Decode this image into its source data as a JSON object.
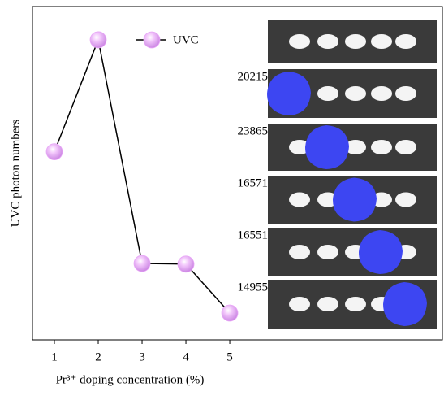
{
  "chart_data": {
    "type": "line",
    "x_label": "Pr³⁺ doping concentration (%)",
    "y_label": "UVC photon numbers",
    "x": [
      1,
      2,
      3,
      4,
      5
    ],
    "series": [
      {
        "name": "UVC",
        "color": "#e8a6f7",
        "line_color": "#000000",
        "values": [
          20215,
          23865,
          16571,
          16551,
          14955
        ]
      }
    ],
    "xlim": [
      0.5,
      9.85
    ],
    "ylim": [
      14080,
      24950
    ],
    "xticks": [
      1,
      2,
      3,
      4,
      5
    ]
  }
}
